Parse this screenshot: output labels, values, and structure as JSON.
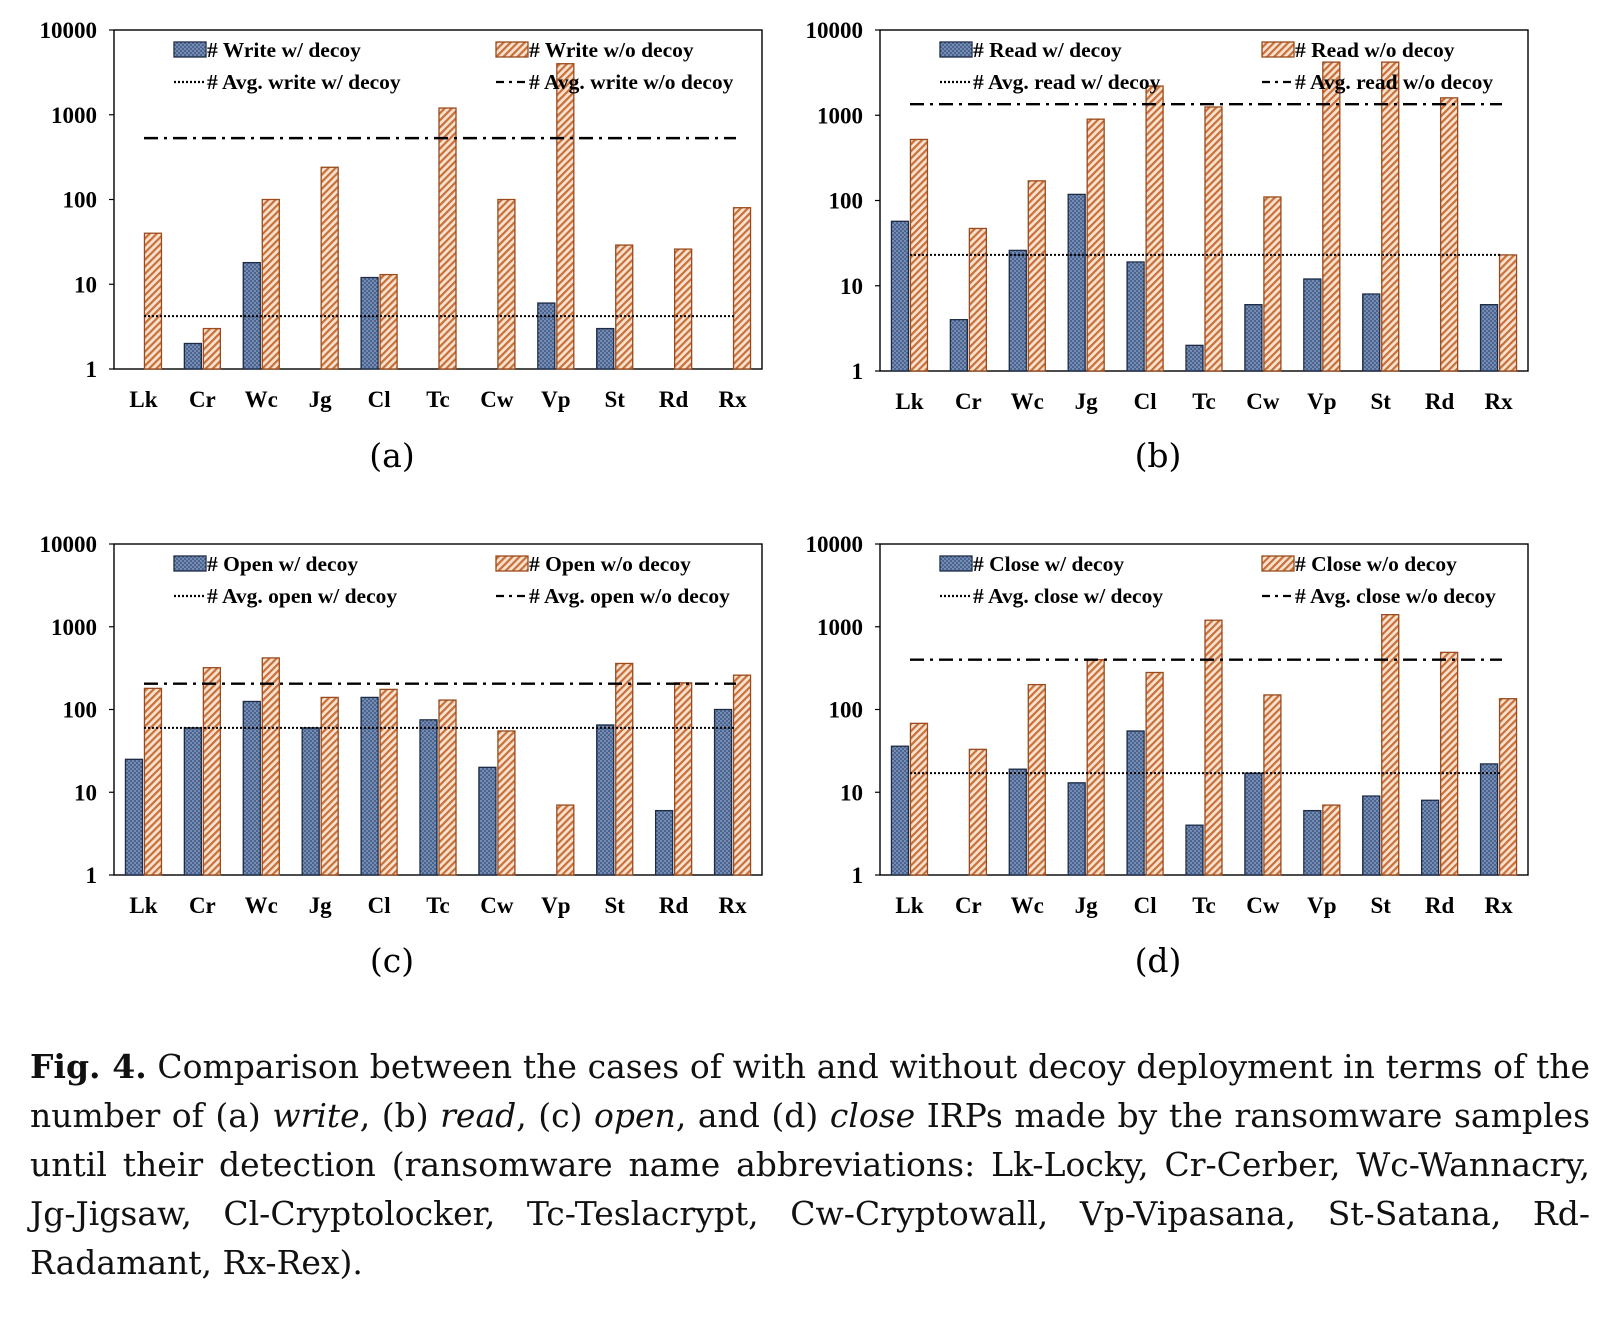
{
  "colors": {
    "with_decoy_fill": "#4a6591",
    "without_decoy_fill": "#eab08a",
    "without_decoy_stroke": "#9a4a1c",
    "axis": "#000000"
  },
  "chart_data": [
    {
      "panel_label": "(a)",
      "type": "bar",
      "y_scale": "log",
      "ylim": [
        1,
        10000
      ],
      "y_ticks": [
        "1",
        "10",
        "100",
        "1000",
        "10000"
      ],
      "categories": [
        "Lk",
        "Cr",
        "Wc",
        "Jg",
        "Cl",
        "Tc",
        "Cw",
        "Vp",
        "St",
        "Rd",
        "Rx"
      ],
      "series": [
        {
          "name": "# Write w/ decoy",
          "style": "with",
          "values": [
            null,
            2,
            18,
            null,
            12,
            null,
            null,
            6,
            3,
            null,
            null
          ]
        },
        {
          "name": "# Write w/o decoy",
          "style": "without",
          "values": [
            40,
            3,
            100,
            240,
            13,
            1200,
            100,
            4000,
            29,
            26,
            80
          ]
        }
      ],
      "reference_lines": [
        {
          "name": "# Avg. write w/ decoy",
          "style": "dotted",
          "value": 4.2
        },
        {
          "name": "# Avg. write w/o decoy",
          "style": "dashdot",
          "value": 530
        }
      ]
    },
    {
      "panel_label": "(b)",
      "type": "bar",
      "y_scale": "log",
      "ylim": [
        1,
        10000
      ],
      "y_ticks": [
        "1",
        "10",
        "100",
        "1000",
        "10000"
      ],
      "categories": [
        "Lk",
        "Cr",
        "Wc",
        "Jg",
        "Cl",
        "Tc",
        "Cw",
        "Vp",
        "St",
        "Rd",
        "Rx"
      ],
      "series": [
        {
          "name": "# Read w/ decoy",
          "style": "with",
          "values": [
            57,
            4,
            26,
            118,
            19,
            2,
            6,
            12,
            8,
            null,
            6
          ]
        },
        {
          "name": "# Read w/o decoy",
          "style": "without",
          "values": [
            520,
            47,
            170,
            900,
            2200,
            1250,
            110,
            4200,
            4200,
            1600,
            23
          ]
        }
      ],
      "reference_lines": [
        {
          "name": "# Avg. read w/ decoy",
          "style": "dotted",
          "value": 23
        },
        {
          "name": "# Avg. read w/o decoy",
          "style": "dashdot",
          "value": 1350
        }
      ]
    },
    {
      "panel_label": "(c)",
      "type": "bar",
      "y_scale": "log",
      "ylim": [
        1,
        10000
      ],
      "y_ticks": [
        "1",
        "10",
        "100",
        "1000",
        "10000"
      ],
      "categories": [
        "Lk",
        "Cr",
        "Wc",
        "Jg",
        "Cl",
        "Tc",
        "Cw",
        "Vp",
        "St",
        "Rd",
        "Rx"
      ],
      "series": [
        {
          "name": "# Open w/ decoy",
          "style": "with",
          "values": [
            25,
            60,
            125,
            60,
            140,
            75,
            20,
            null,
            65,
            6,
            100
          ]
        },
        {
          "name": "# Open w/o decoy",
          "style": "without",
          "values": [
            180,
            320,
            420,
            140,
            175,
            130,
            55,
            7,
            360,
            210,
            260
          ]
        }
      ],
      "reference_lines": [
        {
          "name": "# Avg. open w/ decoy",
          "style": "dotted",
          "value": 60
        },
        {
          "name": "# Avg. open w/o decoy",
          "style": "dashdot",
          "value": 205
        }
      ]
    },
    {
      "panel_label": "(d)",
      "type": "bar",
      "y_scale": "log",
      "ylim": [
        1,
        10000
      ],
      "y_ticks": [
        "1",
        "10",
        "100",
        "1000",
        "10000"
      ],
      "categories": [
        "Lk",
        "Cr",
        "Wc",
        "Jg",
        "Cl",
        "Tc",
        "Cw",
        "Vp",
        "St",
        "Rd",
        "Rx"
      ],
      "series": [
        {
          "name": "# Close w/ decoy",
          "style": "with",
          "values": [
            36,
            null,
            19,
            13,
            55,
            4,
            17,
            6,
            9,
            8,
            22
          ]
        },
        {
          "name": "# Close w/o decoy",
          "style": "without",
          "values": [
            68,
            33,
            200,
            400,
            280,
            1200,
            150,
            7,
            1400,
            490,
            135
          ]
        }
      ],
      "reference_lines": [
        {
          "name": "# Avg. close w/ decoy",
          "style": "dotted",
          "value": 17
        },
        {
          "name": "# Avg. close w/o decoy",
          "style": "dashdot",
          "value": 400
        }
      ]
    }
  ],
  "caption": {
    "label": "Fig. 4.",
    "parts": [
      {
        "t": " Comparison between the cases of with and without decoy deployment in terms of the number of (a) ",
        "i": false
      },
      {
        "t": "write",
        "i": true
      },
      {
        "t": ", (b) ",
        "i": false
      },
      {
        "t": "read",
        "i": true
      },
      {
        "t": ", (c) ",
        "i": false
      },
      {
        "t": "open",
        "i": true
      },
      {
        "t": ", and (d) ",
        "i": false
      },
      {
        "t": "close",
        "i": true
      },
      {
        "t": " IRPs made by the ransomware samples until their detection (ransomware name abbreviations: Lk-Locky, Cr-Cerber, Wc-Wannacry, Jg-Jigsaw, Cl-Cryptolocker, Tc-Teslacrypt, Cw-Cryptowall, Vp-Vipasana, St-Satana, Rd-Radamant, Rx-Rex).",
        "i": false
      }
    ]
  }
}
